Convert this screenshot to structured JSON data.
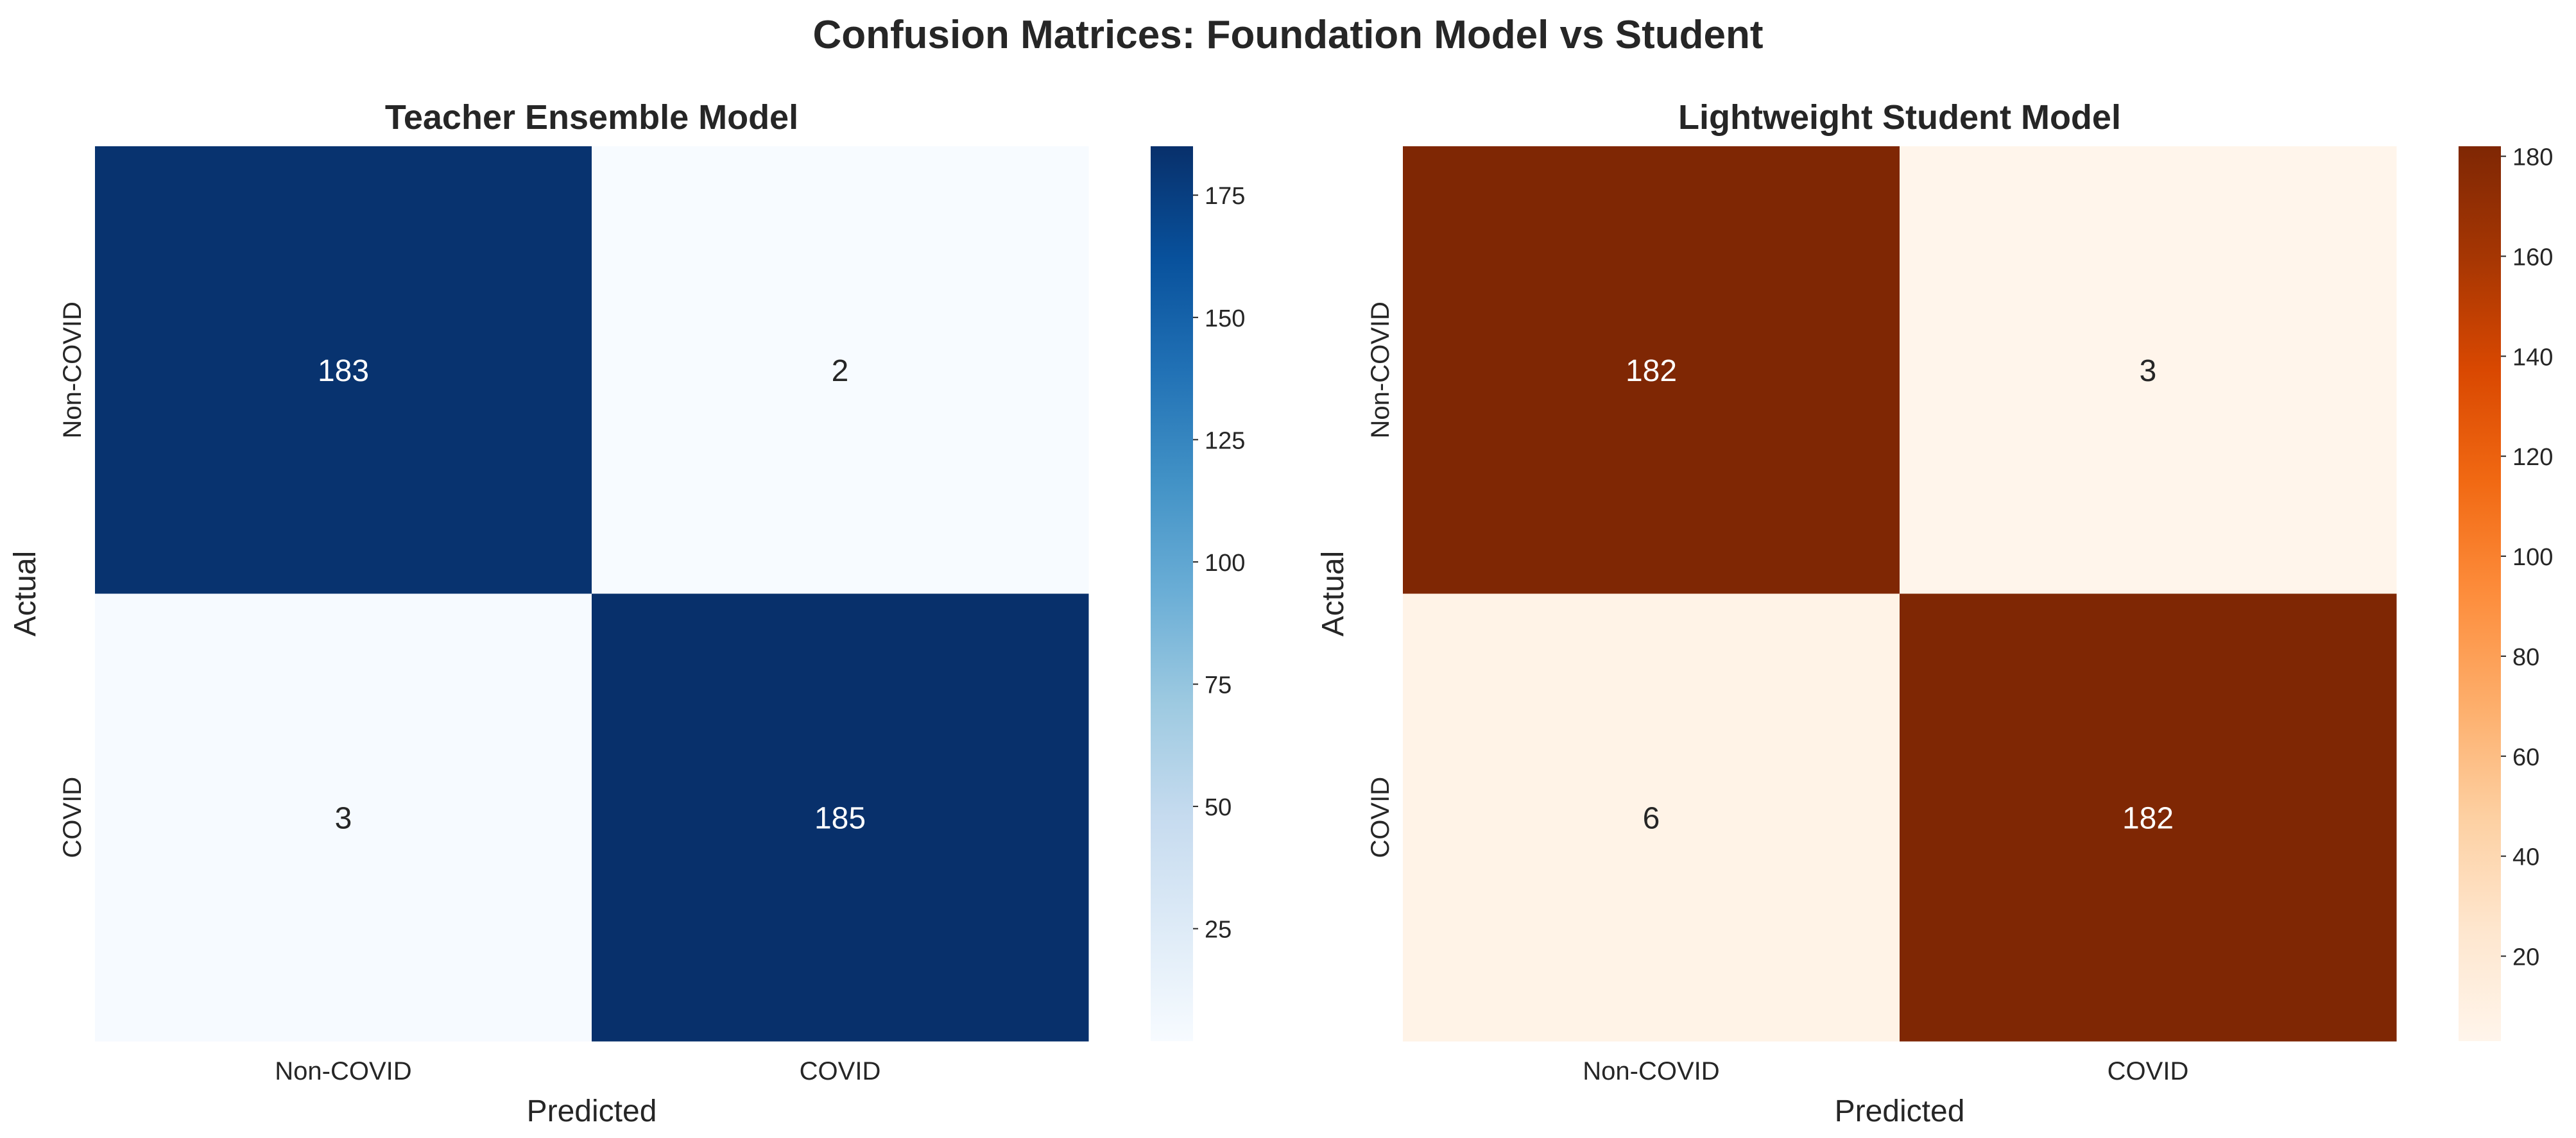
{
  "title": "Confusion Matrices: Foundation Model vs Student",
  "chart_data": [
    {
      "type": "heatmap",
      "title": "Teacher Ensemble Model",
      "xlabel": "Predicted",
      "ylabel": "Actual",
      "x_categories": [
        "Non-COVID",
        "COVID"
      ],
      "y_categories": [
        "Non-COVID",
        "COVID"
      ],
      "values": [
        [
          183,
          2
        ],
        [
          3,
          185
        ]
      ],
      "colormap": "Blues",
      "colorbar_range": [
        2,
        185
      ],
      "colorbar_ticks": [
        25,
        50,
        75,
        100,
        125,
        150,
        175
      ],
      "colors": {
        "low": "#f7fbff",
        "high": "#08306b"
      }
    },
    {
      "type": "heatmap",
      "title": "Lightweight Student Model",
      "xlabel": "Predicted",
      "ylabel": "Actual",
      "x_categories": [
        "Non-COVID",
        "COVID"
      ],
      "y_categories": [
        "Non-COVID",
        "COVID"
      ],
      "values": [
        [
          182,
          3
        ],
        [
          6,
          182
        ]
      ],
      "colormap": "Oranges",
      "colorbar_range": [
        3,
        182
      ],
      "colorbar_ticks": [
        20,
        40,
        60,
        80,
        100,
        120,
        140,
        160,
        180
      ],
      "colors": {
        "low": "#fff5eb",
        "high": "#7f2704"
      }
    }
  ]
}
